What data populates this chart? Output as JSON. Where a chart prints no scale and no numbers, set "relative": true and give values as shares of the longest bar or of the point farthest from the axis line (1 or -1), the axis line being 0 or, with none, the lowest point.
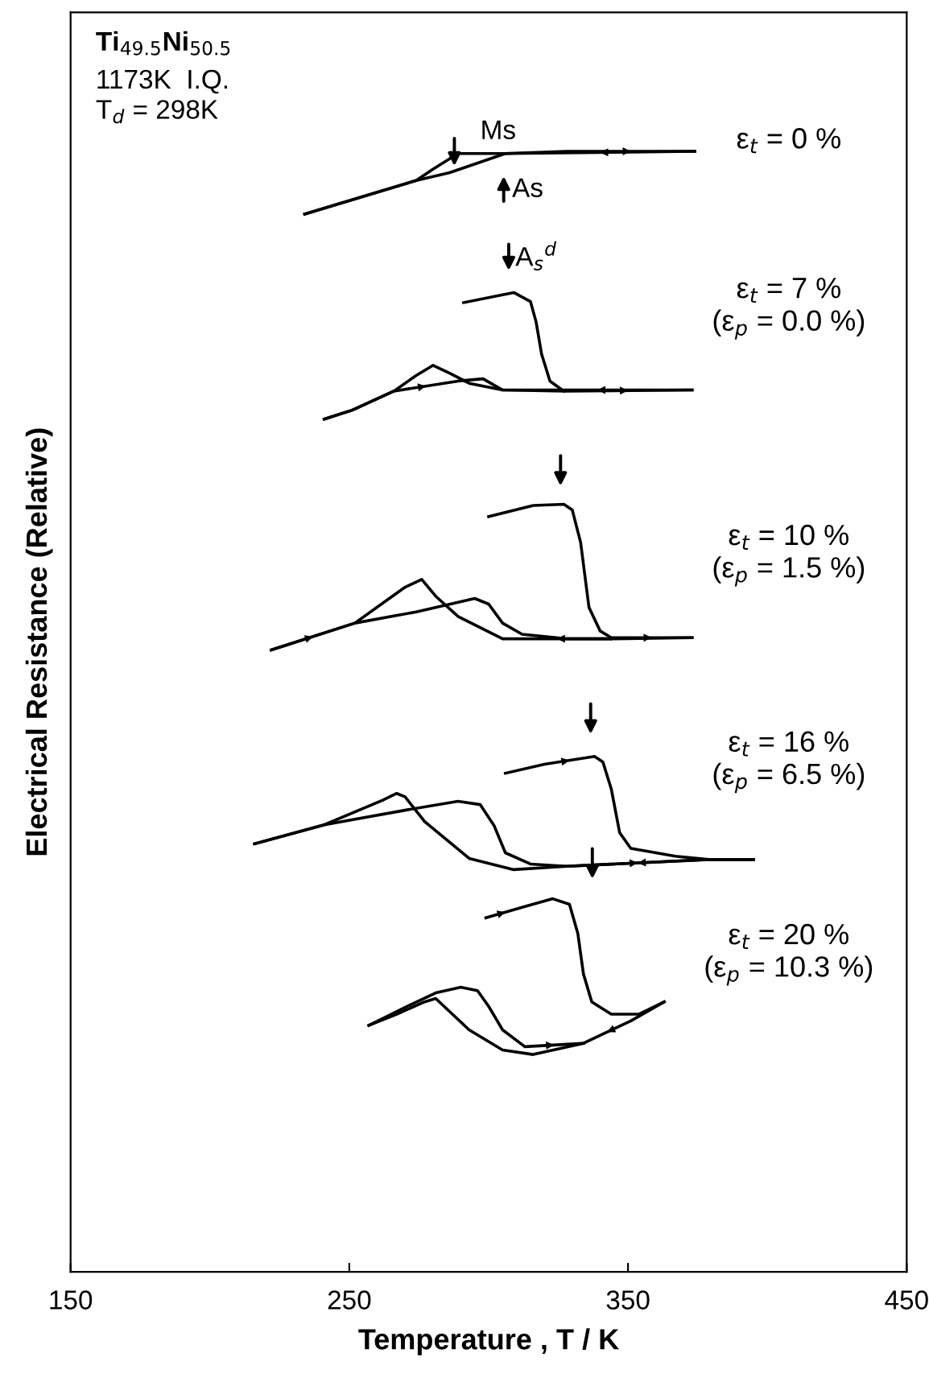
{
  "chart_data": {
    "type": "line",
    "relative": true,
    "title": "Ti$_{49.5}$Ni$_{50.5}$",
    "xlabel": "Temperature , T / K",
    "ylabel": "Electrical Resistance (Relative)",
    "xlim": [
      150,
      450
    ],
    "xticks": [
      150,
      250,
      350,
      450
    ],
    "series": [
      {
        "color": "#000000",
        "x": [
          234,
          274,
          286,
          306,
          328,
          374
        ],
        "values": [
          0.944,
          0.974,
          0.981,
          0.998,
          1.0,
          1.0
        ]
      },
      {
        "color": "#000000",
        "x": [
          374,
          306,
          289,
          280,
          274,
          234
        ],
        "values": [
          1.0,
          0.998,
          0.998,
          0.984,
          0.974,
          0.944
        ]
      },
      {
        "color": "#000000",
        "x": [
          291,
          305,
          309,
          315,
          317,
          319,
          322,
          327,
          373
        ],
        "values": [
          0.865,
          0.872,
          0.874,
          0.866,
          0.848,
          0.819,
          0.795,
          0.786,
          0.787
        ]
      },
      {
        "color": "#000000",
        "x": [
          373,
          305,
          293,
          286,
          280,
          274,
          266,
          251,
          241
        ],
        "values": [
          0.787,
          0.787,
          0.793,
          0.802,
          0.809,
          0.8,
          0.786,
          0.769,
          0.761
        ]
      },
      {
        "color": "#000000",
        "x": [
          241,
          251,
          266,
          289,
          298,
          305,
          327
        ],
        "values": [
          0.761,
          0.769,
          0.786,
          0.795,
          0.797,
          0.787,
          0.786
        ]
      },
      {
        "color": "#000000",
        "x": [
          300,
          316,
          327,
          330,
          333,
          336,
          340,
          344,
          373
        ],
        "values": [
          0.674,
          0.684,
          0.685,
          0.68,
          0.651,
          0.593,
          0.572,
          0.566,
          0.566
        ]
      },
      {
        "color": "#000000",
        "x": [
          373,
          344,
          305,
          289,
          281,
          276,
          270,
          252,
          222
        ],
        "values": [
          0.566,
          0.565,
          0.565,
          0.585,
          0.603,
          0.618,
          0.611,
          0.579,
          0.555
        ]
      },
      {
        "color": "#000000",
        "x": [
          222,
          252,
          274,
          295,
          300,
          305,
          312,
          328,
          344
        ],
        "values": [
          0.555,
          0.579,
          0.589,
          0.601,
          0.596,
          0.579,
          0.569,
          0.565,
          0.565
        ]
      },
      {
        "color": "#000000",
        "x": [
          306,
          320,
          338,
          341,
          344,
          347,
          351,
          367,
          379,
          395
        ],
        "values": [
          0.445,
          0.453,
          0.46,
          0.455,
          0.431,
          0.392,
          0.378,
          0.371,
          0.368,
          0.368
        ]
      },
      {
        "color": "#000000",
        "x": [
          395,
          379,
          328,
          309,
          293,
          277,
          270,
          267,
          262,
          241,
          216
        ],
        "values": [
          0.368,
          0.368,
          0.362,
          0.359,
          0.369,
          0.402,
          0.424,
          0.427,
          0.421,
          0.399,
          0.382
        ]
      },
      {
        "color": "#000000",
        "x": [
          216,
          241,
          270,
          289,
          297,
          302,
          306,
          315,
          328,
          379
        ],
        "values": [
          0.382,
          0.399,
          0.412,
          0.42,
          0.417,
          0.398,
          0.374,
          0.364,
          0.362,
          0.368
        ]
      },
      {
        "color": "#000000",
        "x": [
          299,
          313,
          323,
          329,
          332,
          334,
          337,
          344,
          354,
          363
        ],
        "values": [
          0.316,
          0.326,
          0.333,
          0.328,
          0.302,
          0.266,
          0.241,
          0.23,
          0.23,
          0.241
        ]
      },
      {
        "color": "#000000",
        "x": [
          363,
          351,
          334,
          316,
          305,
          293,
          284,
          281,
          277,
          267,
          257
        ],
        "values": [
          0.241,
          0.224,
          0.204,
          0.194,
          0.198,
          0.216,
          0.237,
          0.244,
          0.241,
          0.23,
          0.22
        ]
      },
      {
        "color": "#000000",
        "x": [
          257,
          270,
          281,
          290,
          296,
          300,
          305,
          313,
          334
        ],
        "values": [
          0.22,
          0.236,
          0.249,
          0.254,
          0.251,
          0.237,
          0.216,
          0.201,
          0.204
        ]
      }
    ],
    "annotations": [
      "1173K  I.Q.",
      "T$_{d}$ = 298K",
      "ε$_{t}$ = 0 %",
      "ε$_{t}$ = 7 %\n(ε$_{p}$ = 0.0 %)",
      "ε$_{t}$ = 10 %\n(ε$_{p}$ = 1.5 %)",
      "ε$_{t}$ = 16 %\n(ε$_{p}$ = 6.5 %)",
      "ε$_{t}$ = 20 %\n(ε$_{p}$ = 10.3 %)",
      "Ms",
      "As",
      "A$_{s}$$^{d}$"
    ]
  }
}
